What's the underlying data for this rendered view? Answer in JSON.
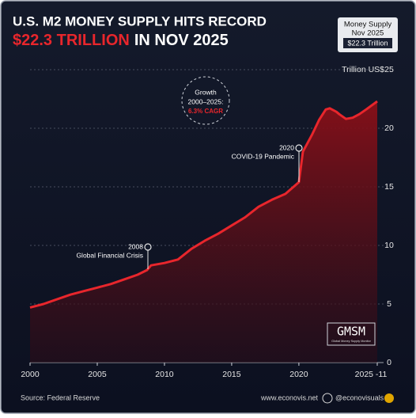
{
  "chart_data": {
    "type": "area",
    "title": "U.S. M2 MONEY SUPPLY HITS RECORD",
    "subtitle_highlight": "$22.3 TRILLION",
    "subtitle_rest": "IN NOV 2025",
    "badge": {
      "lines": [
        "Money Supply",
        "Nov 2025"
      ],
      "value": "$22.3 Trillion"
    },
    "y_axis_label": "Trillion US$",
    "x": [
      2000,
      2001,
      2002,
      2003,
      2004,
      2005,
      2006,
      2007,
      2008,
      2008.7,
      2009,
      2010,
      2011,
      2012,
      2013,
      2014,
      2015,
      2016,
      2017,
      2018,
      2019,
      2020,
      2020.3,
      2021,
      2021.5,
      2022,
      2022.3,
      2022.8,
      2023,
      2023.5,
      2024,
      2024.5,
      2025,
      2025.83
    ],
    "series": [
      {
        "name": "M2",
        "color": "#e8262c",
        "values": [
          4.7,
          5.0,
          5.4,
          5.8,
          6.1,
          6.4,
          6.7,
          7.1,
          7.5,
          7.9,
          8.3,
          8.5,
          8.8,
          9.7,
          10.4,
          11.0,
          11.7,
          12.4,
          13.3,
          13.9,
          14.4,
          15.4,
          18.0,
          19.5,
          20.7,
          21.6,
          21.7,
          21.4,
          21.2,
          20.8,
          20.9,
          21.2,
          21.6,
          22.3
        ]
      }
    ],
    "xlim": [
      2000,
      2025.83
    ],
    "xticks": [
      2000,
      2005,
      2010,
      2015,
      2020,
      {
        "value": 2025.83,
        "label": "2025 -11"
      }
    ],
    "ylim": [
      0,
      25
    ],
    "yticks": [
      0,
      5,
      10,
      15,
      20,
      25
    ],
    "grid": true,
    "annotations": [
      {
        "lines": [
          "2008",
          "Global Financial Crisis"
        ]
      },
      {
        "lines": [
          "2020",
          "COVID-19 Pandemic"
        ]
      },
      {
        "lines": [
          "Growth",
          "2000–2025:"
        ],
        "highlight": "6.3% CAGR"
      }
    ],
    "logo": {
      "text": "GMSM",
      "subtext": "Global Money Supply Monitor"
    },
    "source": "Source: Federal Reserve",
    "website": "www.econovis.net",
    "handle": "@econovisuals"
  }
}
